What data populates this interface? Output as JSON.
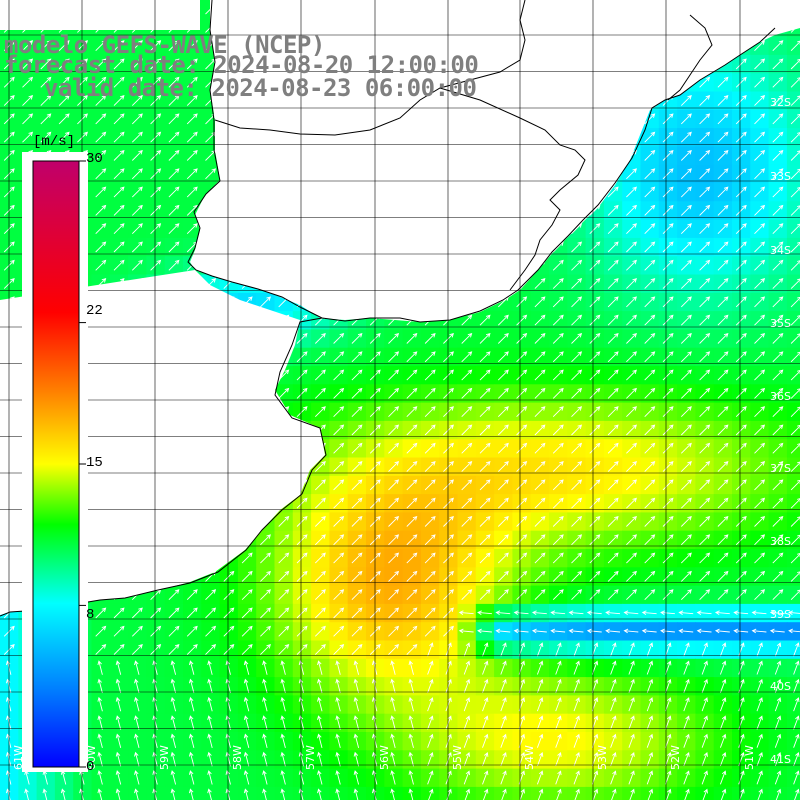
{
  "title": {
    "model": "modelo GEFS-WAVE (NCEP)",
    "forecast": "forecast date: 2024-08-20 12:00:00",
    "valid": "valid date: 2024-08-23 06:00:00"
  },
  "colorbar": {
    "unit": "[m/s]",
    "tick_labels": [
      "30",
      "22",
      "15",
      "8",
      "0"
    ],
    "tick_values": [
      30,
      22,
      15,
      8,
      0
    ],
    "range": [
      0,
      30
    ]
  },
  "map": {
    "lat_range": [
      -41,
      -31
    ],
    "lon_range": [
      -62,
      -51
    ],
    "lat_labels": [
      "32S",
      "33S",
      "34S",
      "35S",
      "36S",
      "37S",
      "38S",
      "39S",
      "40S",
      "41S"
    ],
    "lat_values": [
      -32,
      -33,
      -34,
      -35,
      -36,
      -37,
      -38,
      -39,
      -40,
      -41
    ],
    "lon_labels": [
      "61W",
      "60W",
      "59W",
      "58W",
      "57W",
      "56W",
      "55W",
      "54W",
      "53W",
      "52W",
      "51W"
    ],
    "lon_values": [
      -61,
      -60,
      -59,
      -58,
      -57,
      -56,
      -55,
      -54,
      -53,
      -52,
      -51
    ]
  },
  "colors": {
    "land": "#ffffff",
    "grid": "#000000",
    "coast": "#000000",
    "title": "#7f7f7f",
    "arrow": "#ffffff"
  }
}
